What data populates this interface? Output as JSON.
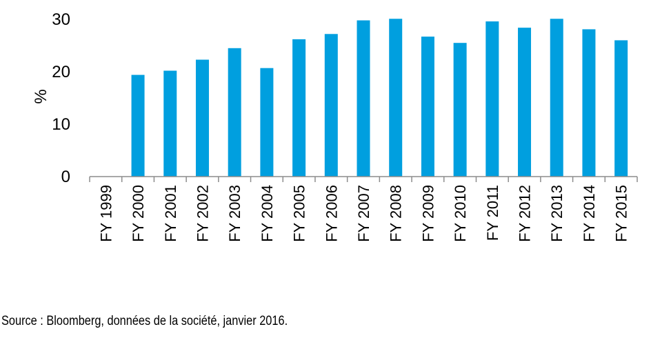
{
  "chart_data": {
    "type": "bar",
    "categories": [
      "FY 1999",
      "FY 2000",
      "FY 2001",
      "FY 2002",
      "FY 2003",
      "FY 2004",
      "FY 2005",
      "FY 2006",
      "FY 2007",
      "FY 2008",
      "FY 2009",
      "FY 2010",
      "FY 2011",
      "FY 2012",
      "FY 2013",
      "FY 2014",
      "FY 2015"
    ],
    "values": [
      0,
      19.4,
      20.2,
      22.3,
      24.5,
      20.7,
      26.2,
      27.2,
      29.8,
      30.1,
      26.7,
      25.5,
      29.6,
      28.4,
      30.1,
      28.1,
      26.0
    ],
    "ylabel": "%",
    "ylim": [
      0,
      30
    ],
    "yticks": [
      "0",
      "10",
      "20",
      "30"
    ],
    "grid": false,
    "bar_color": "#009FDF"
  },
  "source_note": "Source : Bloomberg, données de la société, janvier 2016."
}
